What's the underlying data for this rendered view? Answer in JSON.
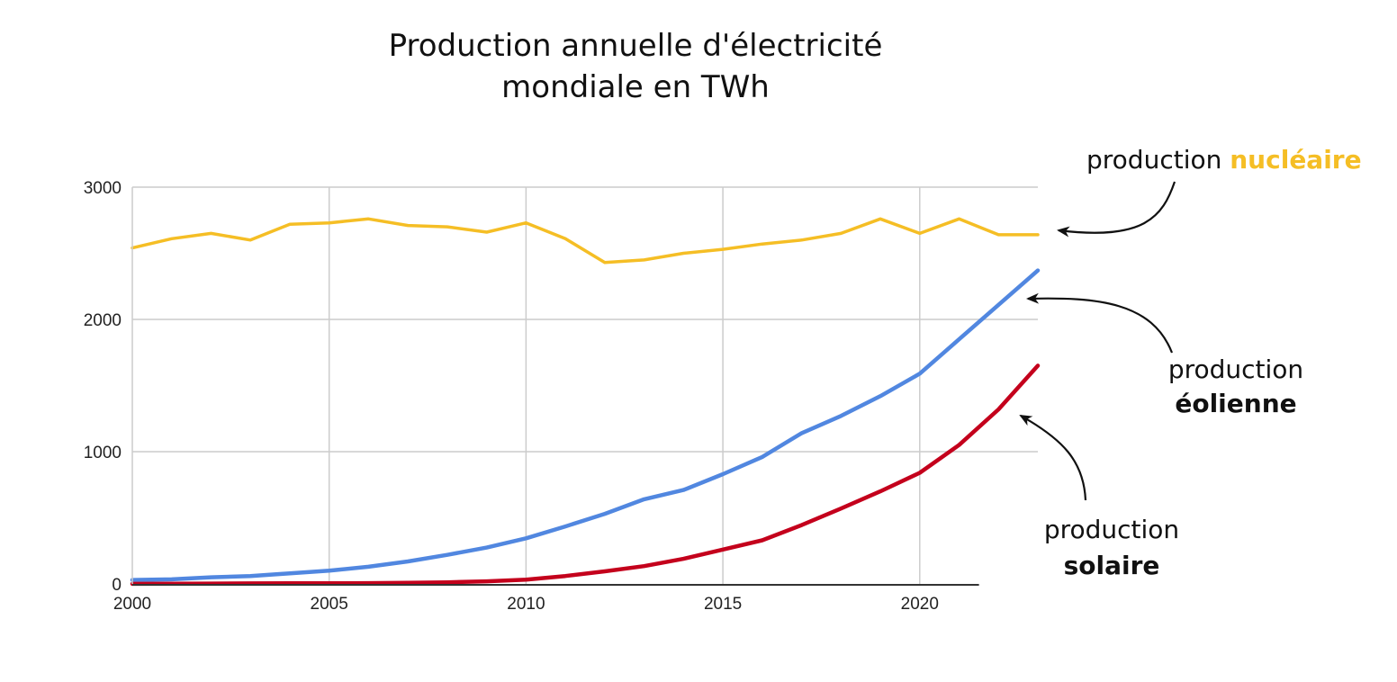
{
  "title_lines": [
    "Production annuelle d'électricité",
    "mondiale en TWh"
  ],
  "annotations": {
    "nuclear": {
      "prefix": "production ",
      "highlight": "nucléaire"
    },
    "wind": {
      "prefix": "production",
      "highlight": "éolienne"
    },
    "solar": {
      "prefix": "production",
      "highlight": "solaire"
    }
  },
  "chart_data": {
    "type": "line",
    "title": "Production annuelle d'électricité mondiale en TWh",
    "xlabel": "",
    "ylabel": "",
    "xlim": [
      2000,
      2023
    ],
    "ylim": [
      0,
      3000
    ],
    "xticks": [
      2000,
      2005,
      2010,
      2015,
      2020
    ],
    "yticks": [
      0,
      1000,
      2000,
      3000
    ],
    "grid": true,
    "x": [
      2000,
      2001,
      2002,
      2003,
      2004,
      2005,
      2006,
      2007,
      2008,
      2009,
      2010,
      2011,
      2012,
      2013,
      2014,
      2015,
      2016,
      2017,
      2018,
      2019,
      2020,
      2021,
      2022,
      2023
    ],
    "series": [
      {
        "key": "nuclear",
        "color": "#f5be25",
        "values": [
          2540,
          2610,
          2650,
          2600,
          2720,
          2730,
          2760,
          2710,
          2700,
          2660,
          2730,
          2610,
          2430,
          2450,
          2500,
          2530,
          2570,
          2600,
          2650,
          2760,
          2650,
          2760,
          2640,
          2640
        ]
      },
      {
        "key": "wind",
        "color": "#5187e0",
        "values": [
          30,
          35,
          50,
          60,
          80,
          100,
          130,
          170,
          220,
          275,
          345,
          435,
          530,
          640,
          710,
          830,
          960,
          1140,
          1270,
          1420,
          1590,
          1850,
          2110,
          2370
        ]
      },
      {
        "key": "solar",
        "color": "#c4001c",
        "values": [
          1,
          2,
          3,
          4,
          5,
          5,
          6,
          8,
          12,
          20,
          32,
          60,
          95,
          135,
          190,
          260,
          330,
          445,
          570,
          700,
          840,
          1050,
          1320,
          1650
        ]
      }
    ]
  }
}
